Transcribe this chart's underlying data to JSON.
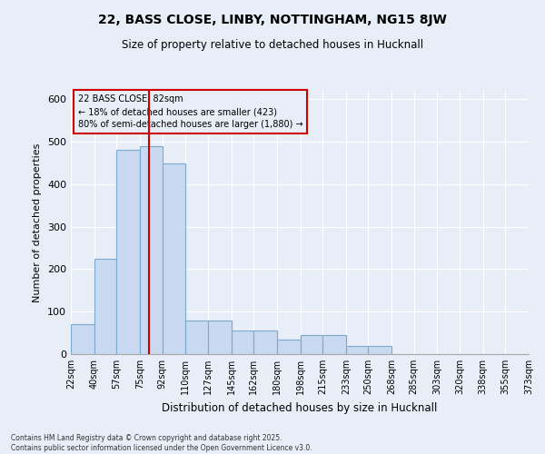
{
  "title": "22, BASS CLOSE, LINBY, NOTTINGHAM, NG15 8JW",
  "subtitle": "Size of property relative to detached houses in Hucknall",
  "xlabel": "Distribution of detached houses by size in Hucknall",
  "ylabel": "Number of detached properties",
  "footnote": "Contains HM Land Registry data © Crown copyright and database right 2025.\nContains public sector information licensed under the Open Government Licence v3.0.",
  "bins": [
    22,
    40,
    57,
    75,
    92,
    110,
    127,
    145,
    162,
    180,
    198,
    215,
    233,
    250,
    268,
    285,
    303,
    320,
    338,
    355,
    373
  ],
  "bar_values": [
    70,
    225,
    480,
    490,
    450,
    80,
    80,
    55,
    55,
    35,
    45,
    45,
    20,
    20,
    0,
    0,
    0,
    0,
    0,
    0
  ],
  "bar_fill": "#c9d9f0",
  "bar_edge": "#7aaad0",
  "property_sqm": 82,
  "property_label": "22 BASS CLOSE: 82sqm",
  "annotation_line1": "← 18% of detached houses are smaller (423)",
  "annotation_line2": "80% of semi-detached houses are larger (1,880) →",
  "vline_color": "#cc0000",
  "bg_color": "#e8eef7",
  "ylim": [
    0,
    620
  ],
  "yticks": [
    0,
    100,
    200,
    300,
    400,
    500,
    600
  ]
}
